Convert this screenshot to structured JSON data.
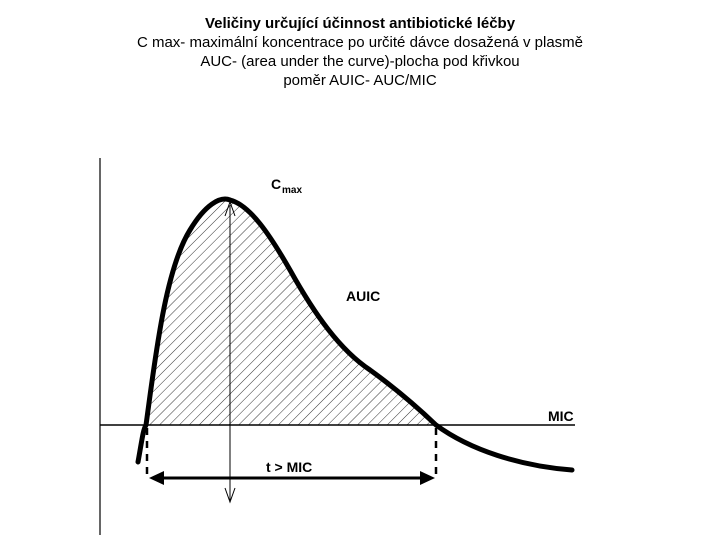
{
  "header": {
    "title": "Veličiny určující účinnost antibiotické léčby",
    "line1": "C max- maximální koncentrace po určité dávce dosažená v plasmě",
    "line2": "AUC- (area under the curve)-plocha pod křivkou",
    "line3": "poměr AUIC- AUC/MIC"
  },
  "diagram": {
    "cmax_label": "C",
    "cmax_sub": "max",
    "auic_label": "AUIC",
    "mic_label": "MIC",
    "time_label": "t > MIC",
    "line_color": "#000000"
  }
}
